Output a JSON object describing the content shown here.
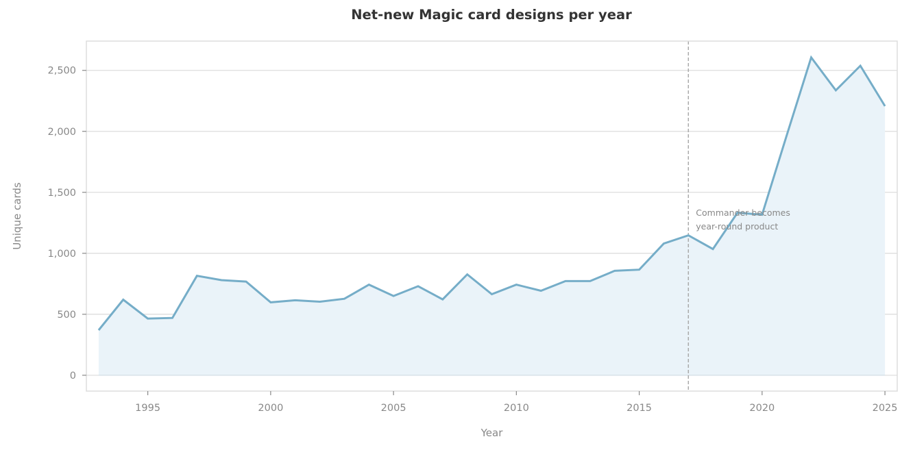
{
  "chart_data": {
    "type": "area",
    "title": "Net-new Magic card designs per year",
    "xlabel": "Year",
    "ylabel": "Unique cards",
    "x": [
      1993,
      1994,
      1995,
      1996,
      1997,
      1998,
      1999,
      2000,
      2001,
      2002,
      2003,
      2004,
      2005,
      2006,
      2007,
      2008,
      2009,
      2010,
      2011,
      2012,
      2013,
      2014,
      2015,
      2016,
      2017,
      2018,
      2019,
      2020,
      2021,
      2022,
      2023,
      2024,
      2025
    ],
    "series": [
      {
        "name": "Unique cards",
        "color": "#75adc8",
        "fill": "#eaf3f9",
        "values": [
          370,
          620,
          465,
          470,
          815,
          780,
          768,
          598,
          615,
          603,
          627,
          743,
          650,
          730,
          622,
          827,
          665,
          743,
          693,
          772,
          772,
          856,
          866,
          1080,
          1147,
          1035,
          1333,
          1316,
          1966,
          2606,
          2336,
          2538,
          2207
        ]
      }
    ],
    "xticks": [
      1995,
      2000,
      2005,
      2010,
      2015,
      2020,
      2025
    ],
    "xtick_labels": [
      "1995",
      "2000",
      "2005",
      "2010",
      "2015",
      "2020",
      "2025"
    ],
    "yticks": [
      0,
      500,
      1000,
      1500,
      2000,
      2500
    ],
    "ytick_labels": [
      "0",
      "500",
      "1,000",
      "1,500",
      "2,000",
      "2,500"
    ],
    "xlim": [
      1992.5,
      2025.5
    ],
    "ylim": [
      -130,
      2740
    ],
    "grid": "horizontal",
    "legend": null,
    "annotations": [
      {
        "type": "vline",
        "x": 2017,
        "style": "dashed",
        "color": "#aaaaaa",
        "text_lines": [
          "Commander becomes",
          "year-round product"
        ]
      }
    ]
  }
}
